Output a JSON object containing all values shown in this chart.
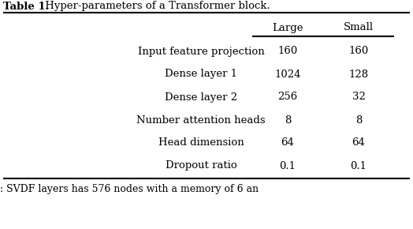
{
  "title_bold": "Table 1.",
  "title_normal": " Hyper-parameters of a Transformer block.",
  "col_headers": [
    "Large",
    "Small"
  ],
  "rows": [
    [
      "Input feature projection",
      "160",
      "160"
    ],
    [
      "Dense layer 1",
      "1024",
      "128"
    ],
    [
      "Dense layer 2",
      "256",
      "32"
    ],
    [
      "Number attention heads",
      "8",
      "8"
    ],
    [
      "Head dimension",
      "64",
      "64"
    ],
    [
      "Dropout ratio",
      "0.1",
      "0.1"
    ]
  ],
  "footer_text": ": SVDF layers has 576 nodes with a memory of 6 an",
  "bg_color": "#ffffff",
  "text_color": "#000000",
  "title_fontsize": 9.5,
  "header_fontsize": 9.5,
  "cell_fontsize": 9.5,
  "footer_fontsize": 9.0
}
